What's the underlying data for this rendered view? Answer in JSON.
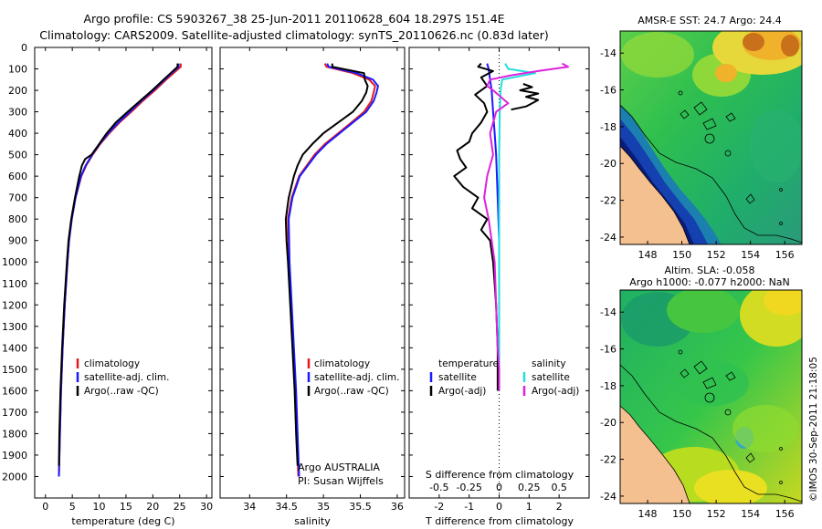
{
  "title": {
    "line1": "Argo profile: CS 5903267_38 25-Jun-2011 20110628_604 18.297S 151.4E",
    "line2": "Climatology: CARS2009. Satellite-adjusted climatology: synTS_20110626.nc (0.83d later)"
  },
  "colors": {
    "clim": "#e41a1c",
    "sat": "#1a1aff",
    "argo": "#000000",
    "cyan": "#22dddd",
    "magenta": "#dd22dd"
  },
  "depth_axis": {
    "ticks": [
      0,
      100,
      200,
      300,
      400,
      500,
      600,
      700,
      800,
      900,
      1000,
      1100,
      1200,
      1300,
      1400,
      1500,
      1600,
      1700,
      1800,
      1900,
      2000
    ]
  },
  "chart_data": [
    {
      "type": "line",
      "name": "temperature",
      "xlabel": "temperature (deg C)",
      "xlim": [
        -2,
        31
      ],
      "ylim": [
        0,
        2100
      ],
      "xticks": [
        0,
        5,
        10,
        15,
        20,
        25,
        30
      ],
      "legend": [
        "climatology",
        "satellite-adj. clim.",
        "Argo(..raw -QC)"
      ],
      "series": [
        {
          "name": "climatology",
          "color": "clim",
          "depth": [
            75,
            90,
            150,
            200,
            250,
            300,
            350,
            400,
            450,
            500,
            550,
            600,
            700,
            800,
            900,
            1000,
            1200,
            1400,
            1600,
            1800,
            2000
          ],
          "values": [
            25.2,
            25.2,
            22.5,
            20.4,
            18.1,
            16.0,
            13.8,
            11.9,
            10.2,
            8.8,
            7.6,
            6.7,
            5.6,
            4.9,
            4.4,
            4.1,
            3.6,
            3.2,
            2.9,
            2.7,
            2.5
          ]
        },
        {
          "name": "satellite-adj. clim.",
          "color": "sat",
          "depth": [
            75,
            90,
            150,
            200,
            250,
            300,
            350,
            400,
            450,
            500,
            550,
            600,
            700,
            800,
            900,
            1000,
            1200,
            1400,
            1600,
            1800,
            2000
          ],
          "values": [
            24.8,
            24.8,
            22.2,
            20.1,
            17.8,
            15.7,
            13.6,
            11.7,
            10.1,
            8.7,
            7.5,
            6.6,
            5.6,
            4.9,
            4.4,
            4.1,
            3.6,
            3.2,
            2.9,
            2.7,
            2.5
          ]
        },
        {
          "name": "Argo(..raw -QC)",
          "color": "argo",
          "depth": [
            75,
            90,
            150,
            200,
            250,
            300,
            350,
            400,
            450,
            500,
            520,
            550,
            600,
            700,
            800,
            900,
            1000,
            1200,
            1400,
            1600,
            1800,
            1950
          ],
          "values": [
            24.6,
            24.6,
            22.0,
            19.9,
            17.6,
            15.3,
            13.1,
            11.4,
            10.0,
            8.6,
            7.4,
            6.8,
            6.3,
            5.5,
            4.8,
            4.3,
            4.0,
            3.5,
            3.1,
            2.8,
            2.6,
            2.5
          ]
        }
      ]
    },
    {
      "type": "line",
      "name": "salinity",
      "xlabel": "salinity",
      "xlim": [
        33.6,
        36.1
      ],
      "ylim": [
        0,
        2100
      ],
      "xticks": [
        34,
        34.5,
        35,
        35.5,
        36
      ],
      "legend": [
        "climatology",
        "satellite-adj. clim.",
        "Argo(..raw -QC)"
      ],
      "annotation": [
        "Argo AUSTRALIA",
        "PI: Susan Wijffels"
      ],
      "series": [
        {
          "name": "climatology",
          "color": "clim",
          "depth": [
            75,
            90,
            120,
            150,
            180,
            210,
            250,
            300,
            350,
            400,
            450,
            500,
            600,
            700,
            800,
            1000,
            1200,
            1400,
            1600,
            1800,
            2000
          ],
          "values": [
            35.02,
            35.04,
            35.4,
            35.62,
            35.7,
            35.68,
            35.65,
            35.55,
            35.38,
            35.2,
            35.02,
            34.88,
            34.67,
            34.57,
            34.52,
            34.53,
            34.56,
            34.59,
            34.62,
            34.64,
            34.66
          ]
        },
        {
          "name": "satellite-adj. clim.",
          "color": "sat",
          "depth": [
            75,
            90,
            120,
            150,
            180,
            210,
            250,
            300,
            350,
            400,
            450,
            500,
            600,
            700,
            800,
            1000,
            1200,
            1400,
            1600,
            1800,
            2000
          ],
          "values": [
            35.05,
            35.07,
            35.45,
            35.67,
            35.74,
            35.72,
            35.68,
            35.58,
            35.4,
            35.22,
            35.04,
            34.9,
            34.68,
            34.58,
            34.53,
            34.54,
            34.57,
            34.6,
            34.63,
            34.65,
            34.67
          ]
        },
        {
          "name": "Argo(..raw -QC)",
          "color": "argo",
          "depth": [
            75,
            90,
            120,
            150,
            180,
            210,
            250,
            300,
            350,
            400,
            450,
            500,
            550,
            600,
            700,
            800,
            900,
            1000,
            1200,
            1400,
            1600,
            1800,
            1950
          ],
          "values": [
            35.12,
            35.12,
            35.55,
            35.56,
            35.6,
            35.58,
            35.52,
            35.4,
            35.2,
            35.0,
            34.85,
            34.72,
            34.65,
            34.6,
            34.53,
            34.49,
            34.5,
            34.52,
            34.55,
            34.58,
            34.61,
            34.63,
            34.65
          ]
        }
      ]
    },
    {
      "type": "line",
      "name": "differences",
      "xlabel": "T difference from climatology",
      "xlabel_top": "S difference from climatology",
      "xlim": [
        -3,
        3
      ],
      "ylim": [
        0,
        2100
      ],
      "xticks": [
        -2,
        -1,
        0,
        1,
        2
      ],
      "xticks_top_labels": [
        "-0.5",
        "-0.25",
        "0",
        "0.25",
        "0.5"
      ],
      "legend_left_title": "temperature",
      "legend_left": [
        "satellite",
        "Argo(-adj)"
      ],
      "legend_right_title": "salinity",
      "legend_right": [
        "satellite",
        "Argo(-adj)"
      ],
      "series": [
        {
          "name": "T satellite",
          "color": "sat",
          "depth": [
            75,
            100,
            150,
            200,
            300,
            400,
            500,
            700,
            900,
            1200,
            1500,
            1600
          ],
          "values": [
            -0.4,
            -0.35,
            -0.3,
            -0.25,
            -0.2,
            -0.15,
            -0.1,
            -0.05,
            0,
            0,
            0,
            0
          ]
        },
        {
          "name": "T Argo(-adj)",
          "color": "argo",
          "depth": [
            75,
            90,
            110,
            140,
            180,
            220,
            260,
            300,
            350,
            400,
            440,
            480,
            520,
            560,
            600,
            650,
            700,
            750,
            800,
            850,
            900,
            1000,
            1100,
            1200,
            1400,
            1500,
            1600
          ],
          "values": [
            -0.6,
            -0.7,
            -0.2,
            -0.6,
            -0.4,
            -0.8,
            -0.5,
            -0.4,
            -0.6,
            -0.9,
            -1.0,
            -1.4,
            -1.3,
            -1.1,
            -1.5,
            -1.2,
            -0.7,
            -0.9,
            -0.4,
            -0.6,
            -0.3,
            -0.2,
            -0.15,
            -0.1,
            -0.05,
            -0.05,
            -0.05
          ]
        },
        {
          "name": "T Argo detail",
          "color": "argo",
          "depth": [
            170,
            185,
            200,
            215,
            230,
            245,
            260,
            275,
            290
          ],
          "values": [
            0.8,
            1.1,
            0.7,
            1.3,
            0.9,
            1.3,
            1.1,
            0.9,
            0.4
          ]
        },
        {
          "name": "S satellite",
          "color": "cyan",
          "depth": [
            75,
            100,
            120,
            150,
            200,
            300,
            500,
            800,
            1200,
            1500,
            1600
          ],
          "values": [
            0.2,
            0.3,
            1.2,
            0.1,
            0.05,
            0.02,
            0.0,
            0.0,
            0.0,
            0.0,
            0.0
          ]
        },
        {
          "name": "S Argo(-adj)",
          "color": "magenta",
          "depth": [
            75,
            90,
            110,
            130,
            150,
            180,
            200,
            260,
            300,
            400,
            500,
            600,
            700,
            800,
            900,
            1000,
            1200,
            1400,
            1500,
            1600
          ],
          "values": [
            2.1,
            2.3,
            1.3,
            0.4,
            -0.3,
            -0.4,
            -0.2,
            0.3,
            -0.1,
            -0.3,
            -0.2,
            -0.4,
            -0.5,
            -0.35,
            -0.25,
            -0.15,
            -0.1,
            -0.05,
            0,
            0
          ]
        }
      ]
    }
  ],
  "maps": [
    {
      "title": "AMSR-E SST: 24.7 Argo: 24.4",
      "subtitle": "",
      "xticks": [
        "148",
        "150",
        "152",
        "154",
        "156"
      ],
      "yticks": [
        "-14",
        "-16",
        "-18",
        "-20",
        "-22",
        "-24"
      ]
    },
    {
      "title": "Argo h1000: -0.077 h2000: NaN",
      "subtitle": "Altim. SLA: -0.058",
      "xticks": [
        "148",
        "150",
        "152",
        "154",
        "156"
      ],
      "yticks": [
        "-14",
        "-16",
        "-18",
        "-20",
        "-22",
        "-24"
      ]
    }
  ],
  "credit": "©IMOS 30-Sep-2011 21:18:05"
}
